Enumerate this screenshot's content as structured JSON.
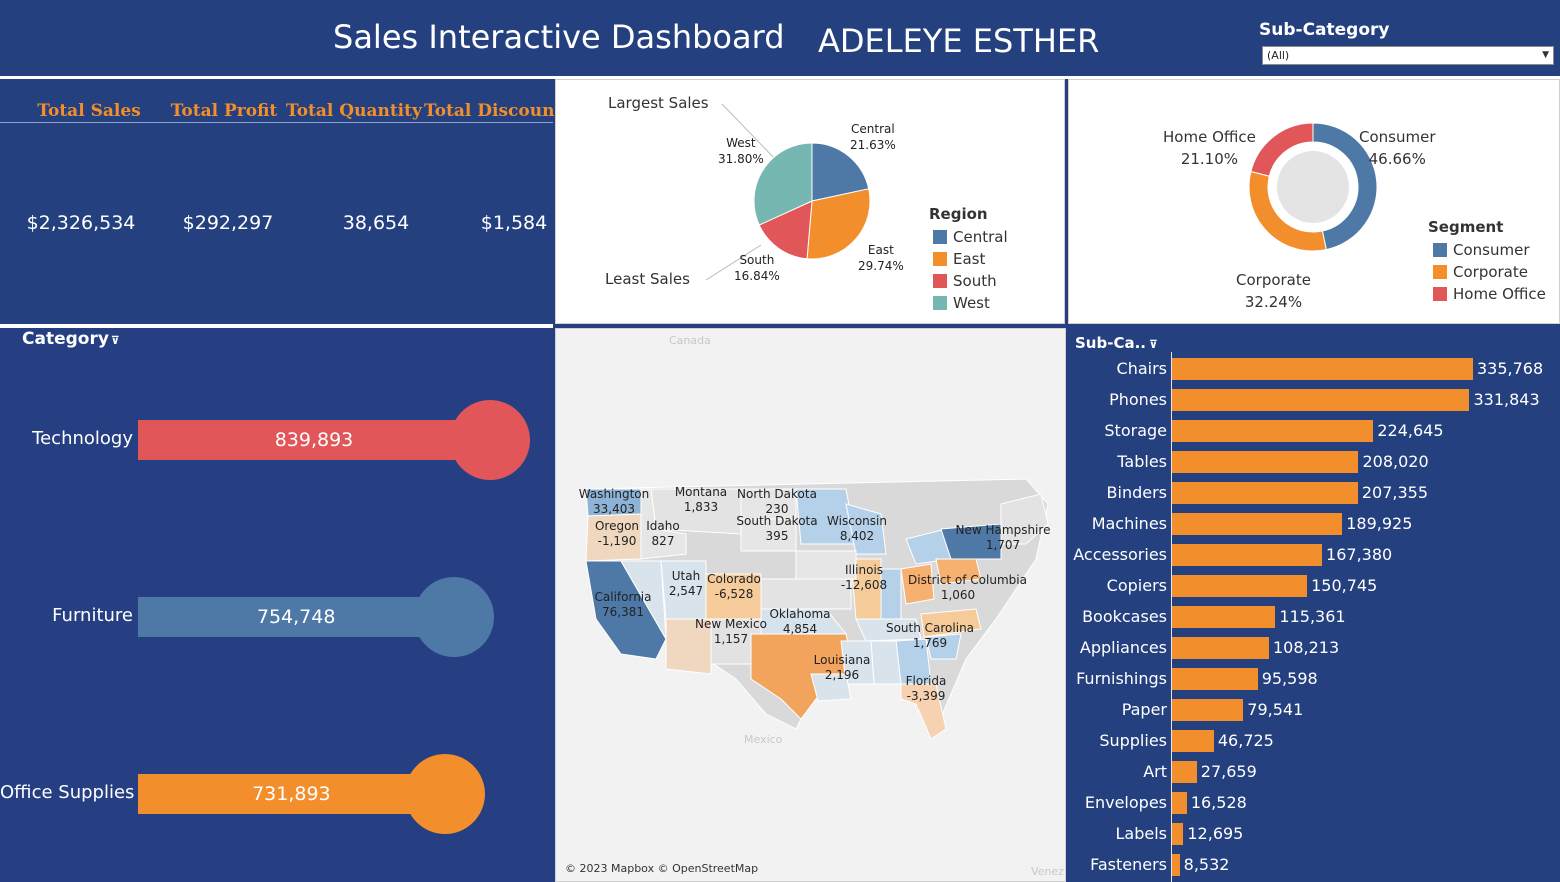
{
  "header": {
    "title": "Sales Interactive Dashboard",
    "author": "ADELEYE ESTHER",
    "filter_label": "Sub-Category",
    "filter_value": "(All)"
  },
  "kpis": [
    {
      "label": "Total Sales",
      "value": "$2,326,534"
    },
    {
      "label": "Total Profit",
      "value": "$292,297"
    },
    {
      "label": "Total Quantity",
      "value": "38,654"
    },
    {
      "label": "Total Discount",
      "value": "$1,584"
    }
  ],
  "colors": {
    "background": "#253f82",
    "blue": "#4e79a7",
    "orange": "#f28e2b",
    "red": "#e15759",
    "teal": "#76b7b2",
    "kpi_header": "#f28e2b"
  },
  "chart_data": [
    {
      "type": "pie",
      "legend_title": "Region",
      "annotations": [
        "Largest Sales",
        "Least Sales"
      ],
      "categories": [
        "Central",
        "East",
        "South",
        "West"
      ],
      "values": [
        21.63,
        29.74,
        16.84,
        31.8
      ],
      "labels": [
        "21.63%",
        "29.74%",
        "16.84%",
        "31.80%"
      ],
      "colors": [
        "#4e79a7",
        "#f28e2b",
        "#e15759",
        "#76b7b2"
      ],
      "legend_placement": "right"
    },
    {
      "type": "pie",
      "legend_title": "Segment",
      "categories": [
        "Consumer",
        "Corporate",
        "Home Office"
      ],
      "values": [
        46.66,
        32.24,
        21.1
      ],
      "labels": [
        "46.66%",
        "32.24%",
        "21.10%"
      ],
      "colors": [
        "#4e79a7",
        "#f28e2b",
        "#e15759"
      ],
      "legend_placement": "right"
    },
    {
      "type": "bar",
      "header": "Category",
      "categories": [
        "Technology",
        "Furniture",
        "Office Supplies"
      ],
      "values": [
        839893,
        754748,
        731893
      ],
      "labels": [
        "839,893",
        "754,748",
        "731,893"
      ],
      "colors": [
        "#e15759",
        "#4e79a7",
        "#f28e2b"
      ]
    },
    {
      "type": "bar",
      "header": "Sub-Ca..",
      "categories": [
        "Chairs",
        "Phones",
        "Storage",
        "Tables",
        "Binders",
        "Machines",
        "Accessories",
        "Copiers",
        "Bookcases",
        "Appliances",
        "Furnishings",
        "Paper",
        "Supplies",
        "Art",
        "Envelopes",
        "Labels",
        "Fasteners"
      ],
      "values": [
        335768,
        331843,
        224645,
        208020,
        207355,
        189925,
        167380,
        150745,
        115361,
        108213,
        95598,
        79541,
        46725,
        27659,
        16528,
        12695,
        8532
      ],
      "labels": [
        "335,768",
        "331,843",
        "224,645",
        "208,020",
        "207,355",
        "189,925",
        "167,380",
        "150,745",
        "115,361",
        "108,213",
        "95,598",
        "79,541",
        "46,725",
        "27,659",
        "16,528",
        "12,695",
        "8,532"
      ],
      "color": "#f28e2b"
    }
  ],
  "map": {
    "attribution": "© 2023 Mapbox © OpenStreetMap",
    "places": [
      "Canada",
      "Mexico",
      "Venez"
    ],
    "states": [
      {
        "name": "Washington",
        "value": "33,403"
      },
      {
        "name": "Montana",
        "value": "1,833"
      },
      {
        "name": "North Dakota",
        "value": "230"
      },
      {
        "name": "Oregon",
        "value": "-1,190"
      },
      {
        "name": "Idaho",
        "value": "827"
      },
      {
        "name": "South Dakota",
        "value": "395"
      },
      {
        "name": "Wisconsin",
        "value": "8,402"
      },
      {
        "name": "New Hampshire",
        "value": "1,707"
      },
      {
        "name": "Utah",
        "value": "2,547"
      },
      {
        "name": "Colorado",
        "value": "-6,528"
      },
      {
        "name": "Illinois",
        "value": "-12,608"
      },
      {
        "name": "District of Columbia",
        "value": "1,060"
      },
      {
        "name": "California",
        "value": "76,381"
      },
      {
        "name": "New Mexico",
        "value": "1,157"
      },
      {
        "name": "Oklahoma",
        "value": "4,854"
      },
      {
        "name": "South Carolina",
        "value": "1,769"
      },
      {
        "name": "Louisiana",
        "value": "2,196"
      },
      {
        "name": "Florida",
        "value": "-3,399"
      }
    ]
  }
}
